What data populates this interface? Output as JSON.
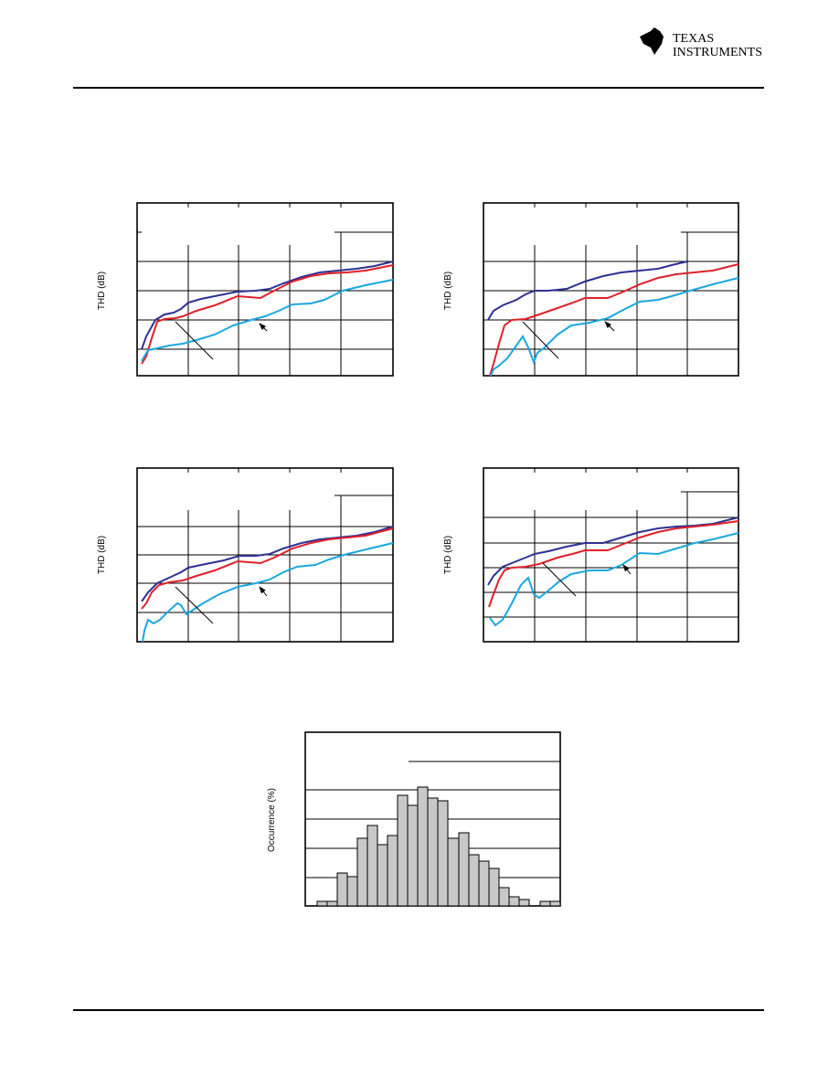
{
  "header": {
    "logo_line1": "TEXAS",
    "logo_line2": "INSTRUMENTS"
  },
  "charts": [
    {
      "y_label": "THD (dB)"
    },
    {
      "y_label": "THD (dB)"
    },
    {
      "y_label": "THD (dB)"
    },
    {
      "y_label": "THD (dB)"
    }
  ],
  "histogram": {
    "y_label": "Occurrence (%)"
  }
}
